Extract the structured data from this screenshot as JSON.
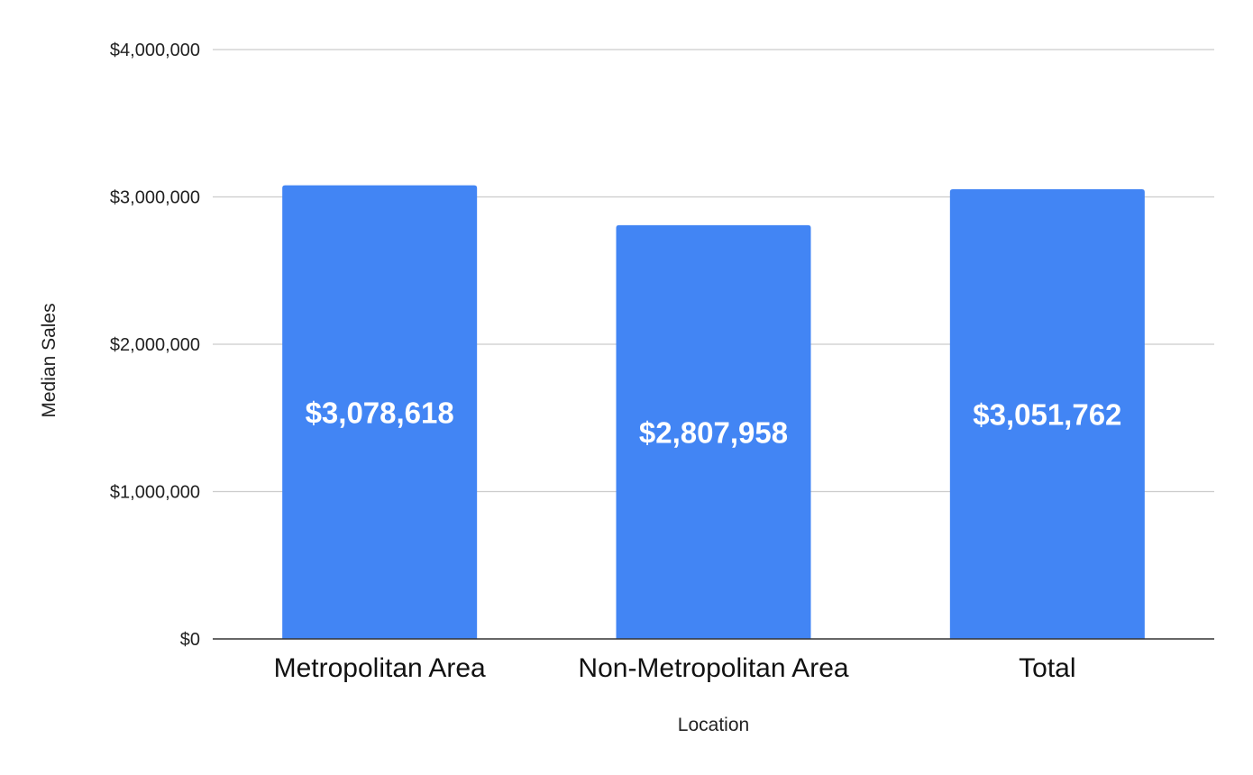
{
  "chart_data": {
    "type": "bar",
    "title": "",
    "xlabel": "Location",
    "ylabel": "Median Sales",
    "categories": [
      "Metropolitan Area",
      "Non-Metropolitan Area",
      "Total"
    ],
    "values": [
      3078618,
      2807958,
      3051762
    ],
    "data_labels": [
      "$3,078,618",
      "$2,807,958",
      "$3,051,762"
    ],
    "ylim": [
      0,
      4000000
    ],
    "yticks": [
      0,
      1000000,
      2000000,
      3000000,
      4000000
    ],
    "ytick_labels": [
      "$0",
      "$1,000,000",
      "$2,000,000",
      "$3,000,000",
      "$4,000,000"
    ],
    "grid": true,
    "legend": "none",
    "bar_color": "#4285f4",
    "grid_color": "#cccccc",
    "baseline_color": "#333333"
  }
}
